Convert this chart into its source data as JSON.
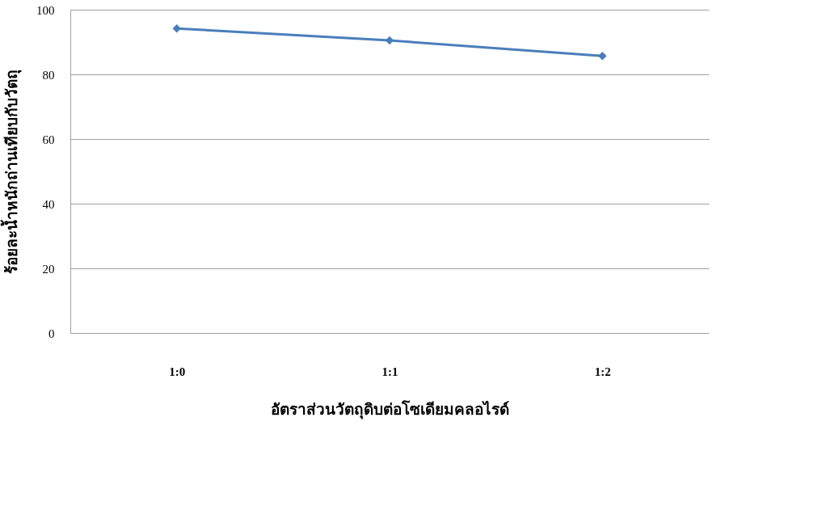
{
  "chart_data": {
    "type": "line",
    "xlabel": "อัตราส่วนวัตถุดิบต่อโซเดียมคลอไรด์",
    "ylabel": "ร้อยละน้ำหนักถ่านเทียบกับวัตถุ",
    "categories": [
      "1:0",
      "1:1",
      "1:2"
    ],
    "series": [
      {
        "color": "#4a7ebb",
        "values": [
          94.2,
          90.5,
          85.7
        ]
      }
    ],
    "ylim": [
      0,
      100
    ],
    "yticks": [
      0,
      20,
      40,
      60,
      80,
      100
    ],
    "grid": "y",
    "marker": "diamond",
    "line_style": "solid"
  }
}
